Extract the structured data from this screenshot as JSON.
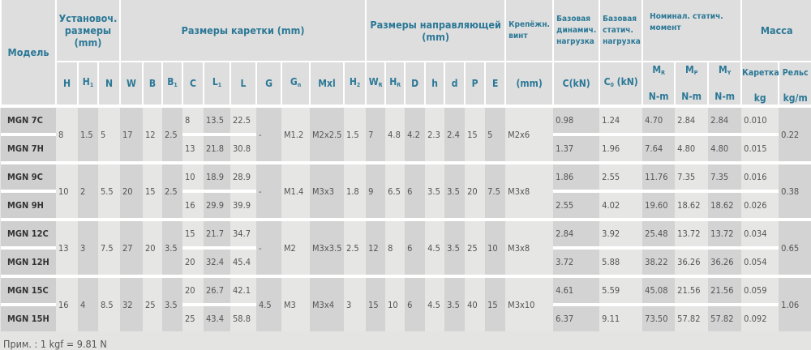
{
  "header": {
    "model": "Модель",
    "setup": "Установоч. размеры (mm)",
    "carriage": "Размеры каретки (mm)",
    "rail": "Размеры направляющей (mm)",
    "screw": "Крепёжн. винт",
    "dyn": "Базовая динамич. нагрузка",
    "stat": "Базовая статич. нагрузка",
    "moment": "Номинал. статич. момент",
    "mass": "Масса",
    "cols": [
      {
        "t": "H",
        "s": ""
      },
      {
        "t": "H",
        "s": "1"
      },
      {
        "t": "N",
        "s": ""
      },
      {
        "t": "W",
        "s": ""
      },
      {
        "t": "B",
        "s": ""
      },
      {
        "t": "B",
        "s": "1"
      },
      {
        "t": "C",
        "s": ""
      },
      {
        "t": "L",
        "s": "1"
      },
      {
        "t": "L",
        "s": ""
      },
      {
        "t": "G",
        "s": ""
      },
      {
        "t": "G",
        "s": "n"
      },
      {
        "t": "Mxl",
        "s": ""
      },
      {
        "t": "H",
        "s": "2"
      },
      {
        "t": "W",
        "s": "R"
      },
      {
        "t": "H",
        "s": "R"
      },
      {
        "t": "D",
        "s": ""
      },
      {
        "t": "h",
        "s": ""
      },
      {
        "t": "d",
        "s": ""
      },
      {
        "t": "P",
        "s": ""
      },
      {
        "t": "E",
        "s": ""
      },
      {
        "t": "(mm)",
        "s": ""
      },
      {
        "t": "C(kN)",
        "s": ""
      },
      {
        "t": "C",
        "s": "0",
        "t2": " (kN)"
      }
    ],
    "moments": [
      {
        "t": "M",
        "s": "R",
        "u": "N-m"
      },
      {
        "t": "M",
        "s": "P",
        "u": "N-m"
      },
      {
        "t": "M",
        "s": "Y",
        "u": "N-m"
      }
    ],
    "masses": [
      {
        "t": "Каретка",
        "u": "kg"
      },
      {
        "t": "Рельс",
        "u": "kg/m"
      }
    ]
  },
  "groups": [
    {
      "models": [
        "MGN 7C",
        "MGN 7H"
      ],
      "shared_a": [
        "8",
        "1.5",
        "5",
        "17",
        "12",
        "2.5"
      ],
      "rows_a": [
        [
          "8",
          "13.5",
          "22.5"
        ],
        [
          "13",
          "21.8",
          "30.8"
        ]
      ],
      "shared_b": [
        "-",
        "M1.2",
        "M2x2.5",
        "1.5",
        "7",
        "4.8",
        "4.2",
        "2.3",
        "2.4",
        "15",
        "5",
        "M2x6"
      ],
      "rows_b": [
        [
          "0.98",
          "1.24",
          "4.70",
          "2.84",
          "2.84",
          "0.010"
        ],
        [
          "1.37",
          "1.96",
          "7.64",
          "4.80",
          "4.80",
          "0.015"
        ]
      ],
      "rail": "0.22"
    },
    {
      "models": [
        "MGN 9C",
        "MGN 9H"
      ],
      "shared_a": [
        "10",
        "2",
        "5.5",
        "20",
        "15",
        "2.5"
      ],
      "rows_a": [
        [
          "10",
          "18.9",
          "28.9"
        ],
        [
          "16",
          "29.9",
          "39.9"
        ]
      ],
      "shared_b": [
        "-",
        "M1.4",
        "M3x3",
        "1.8",
        "9",
        "6.5",
        "6",
        "3.5",
        "3.5",
        "20",
        "7.5",
        "M3x8"
      ],
      "rows_b": [
        [
          "1.86",
          "2.55",
          "11.76",
          "7.35",
          "7.35",
          "0.016"
        ],
        [
          "2.55",
          "4.02",
          "19.60",
          "18.62",
          "18.62",
          "0.026"
        ]
      ],
      "rail": "0.38"
    },
    {
      "models": [
        "MGN 12C",
        "MGN 12H"
      ],
      "shared_a": [
        "13",
        "3",
        "7.5",
        "27",
        "20",
        "3.5"
      ],
      "rows_a": [
        [
          "15",
          "21.7",
          "34.7"
        ],
        [
          "20",
          "32.4",
          "45.4"
        ]
      ],
      "shared_b": [
        "-",
        "M2",
        "M3x3.5",
        "2.5",
        "12",
        "8",
        "6",
        "4.5",
        "3.5",
        "25",
        "10",
        "M3x8"
      ],
      "rows_b": [
        [
          "2.84",
          "3.92",
          "25.48",
          "13.72",
          "13.72",
          "0.034"
        ],
        [
          "3.72",
          "5.88",
          "38.22",
          "36.26",
          "36.26",
          "0.054"
        ]
      ],
      "rail": "0.65"
    },
    {
      "models": [
        "MGN 15C",
        "MGN 15H"
      ],
      "shared_a": [
        "16",
        "4",
        "8.5",
        "32",
        "25",
        "3.5"
      ],
      "rows_a": [
        [
          "20",
          "26.7",
          "42.1"
        ],
        [
          "25",
          "43.4",
          "58.8"
        ]
      ],
      "shared_b": [
        "4.5",
        "M3",
        "M3x4",
        "3",
        "15",
        "10",
        "6",
        "4.5",
        "3.5",
        "40",
        "15",
        "M3x10"
      ],
      "rows_b": [
        [
          "4.61",
          "5.59",
          "45.08",
          "21.56",
          "21.56",
          "0.059"
        ],
        [
          "6.37",
          "9.11",
          "73.50",
          "57.82",
          "57.82",
          "0.092"
        ]
      ],
      "rail": "1.06"
    }
  ],
  "note": "Прим. : 1 kgf = 9.81 N"
}
